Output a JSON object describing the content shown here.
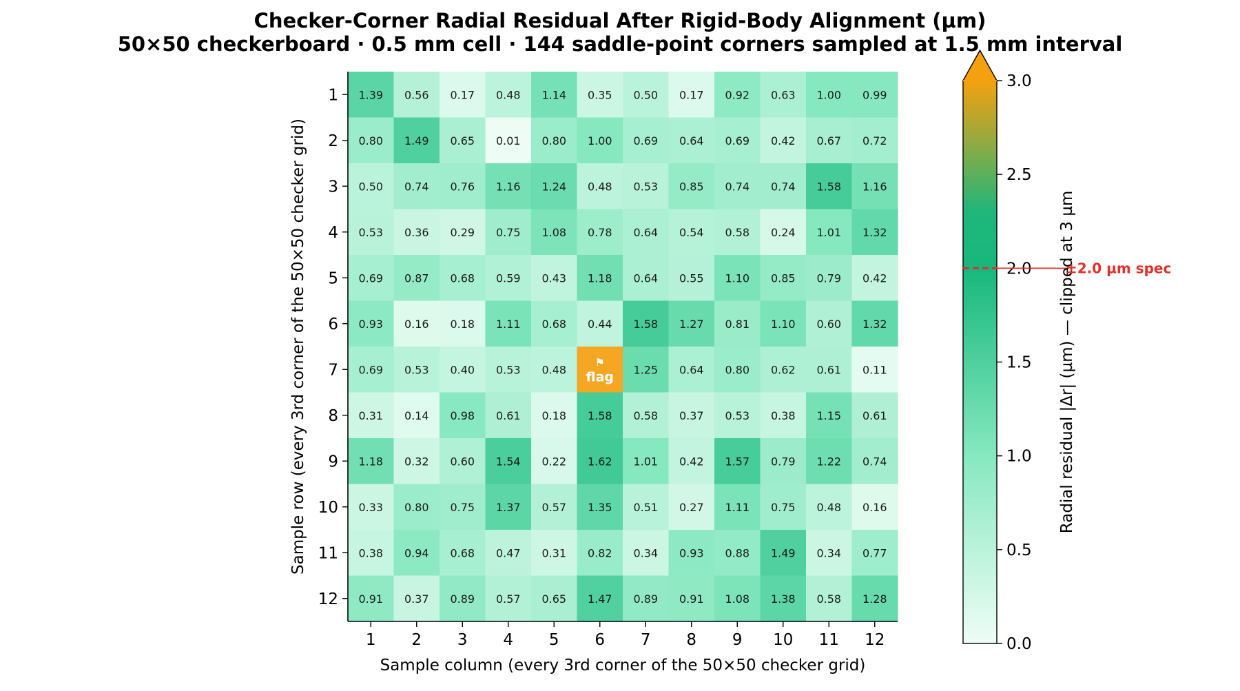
{
  "chart_data": {
    "type": "heatmap",
    "title": "Checker-Corner Radial Residual After Rigid-Body Alignment (µm)",
    "subtitle": "50×50 checkerboard · 0.5 mm cell · 144 saddle-point corners sampled at 1.5 mm interval",
    "xlabel": "Sample column (every 3rd corner of the 50×50 checker grid)",
    "ylabel": "Sample row (every 3rd corner of the 50×50 checker grid)",
    "x_ticks": [
      "1",
      "2",
      "3",
      "4",
      "5",
      "6",
      "7",
      "8",
      "9",
      "10",
      "11",
      "12"
    ],
    "y_ticks": [
      "1",
      "2",
      "3",
      "4",
      "5",
      "6",
      "7",
      "8",
      "9",
      "10",
      "11",
      "12"
    ],
    "values": [
      [
        1.39,
        0.56,
        0.17,
        0.48,
        1.14,
        0.35,
        0.5,
        0.17,
        0.92,
        0.63,
        1.0,
        0.99
      ],
      [
        0.8,
        1.49,
        0.65,
        0.01,
        0.8,
        1.0,
        0.69,
        0.64,
        0.69,
        0.42,
        0.67,
        0.72
      ],
      [
        0.5,
        0.74,
        0.76,
        1.16,
        1.24,
        0.48,
        0.53,
        0.85,
        0.74,
        0.74,
        1.58,
        1.16
      ],
      [
        0.53,
        0.36,
        0.29,
        0.75,
        1.08,
        0.78,
        0.64,
        0.54,
        0.58,
        0.24,
        1.01,
        1.32
      ],
      [
        0.69,
        0.87,
        0.68,
        0.59,
        0.43,
        1.18,
        0.64,
        0.55,
        1.1,
        0.85,
        0.79,
        0.42
      ],
      [
        0.93,
        0.16,
        0.18,
        1.11,
        0.68,
        0.44,
        1.58,
        1.27,
        0.81,
        1.1,
        0.6,
        1.32
      ],
      [
        0.69,
        0.53,
        0.4,
        0.53,
        0.48,
        null,
        1.25,
        0.64,
        0.8,
        0.62,
        0.61,
        0.11
      ],
      [
        0.31,
        0.14,
        0.98,
        0.61,
        0.18,
        1.58,
        0.58,
        0.37,
        0.53,
        0.38,
        1.15,
        0.61
      ],
      [
        1.18,
        0.32,
        0.6,
        1.54,
        0.22,
        1.62,
        1.01,
        0.42,
        1.57,
        0.79,
        1.22,
        0.74
      ],
      [
        0.33,
        0.8,
        0.75,
        1.37,
        0.57,
        1.35,
        0.51,
        0.27,
        1.11,
        0.75,
        0.48,
        0.16
      ],
      [
        0.38,
        0.94,
        0.68,
        0.47,
        0.31,
        0.82,
        0.34,
        0.93,
        0.88,
        1.49,
        0.34,
        0.77
      ],
      [
        0.91,
        0.37,
        0.89,
        0.57,
        0.65,
        1.47,
        0.89,
        0.91,
        1.08,
        1.38,
        0.58,
        1.28
      ]
    ],
    "flagged_cell": {
      "row": 7,
      "col": 6,
      "icon": "flag-icon",
      "glyph": "⚑",
      "label": "flag",
      "color": "#f5a623"
    },
    "colorbar": {
      "label": "Radial residual |Δr| (µm) — clipped at 3 µm",
      "range": [
        0.0,
        3.0
      ],
      "ticks": [
        "0.0",
        "0.5",
        "1.0",
        "1.5",
        "2.0",
        "2.5",
        "3.0"
      ],
      "extend": "max",
      "stops": [
        {
          "v": 0.0,
          "c": "#eefdf6"
        },
        {
          "v": 1.0,
          "c": "#86e8bf"
        },
        {
          "v": 2.0,
          "c": "#17b87c"
        },
        {
          "v": 2.3,
          "c": "#1fb67a"
        },
        {
          "v": 3.0,
          "c": "#f5a00f"
        }
      ],
      "over_color": "#f5a00f",
      "spec_value": 2.0,
      "spec_label": "±2.0 µm spec",
      "spec_color": "#e0302a"
    }
  }
}
